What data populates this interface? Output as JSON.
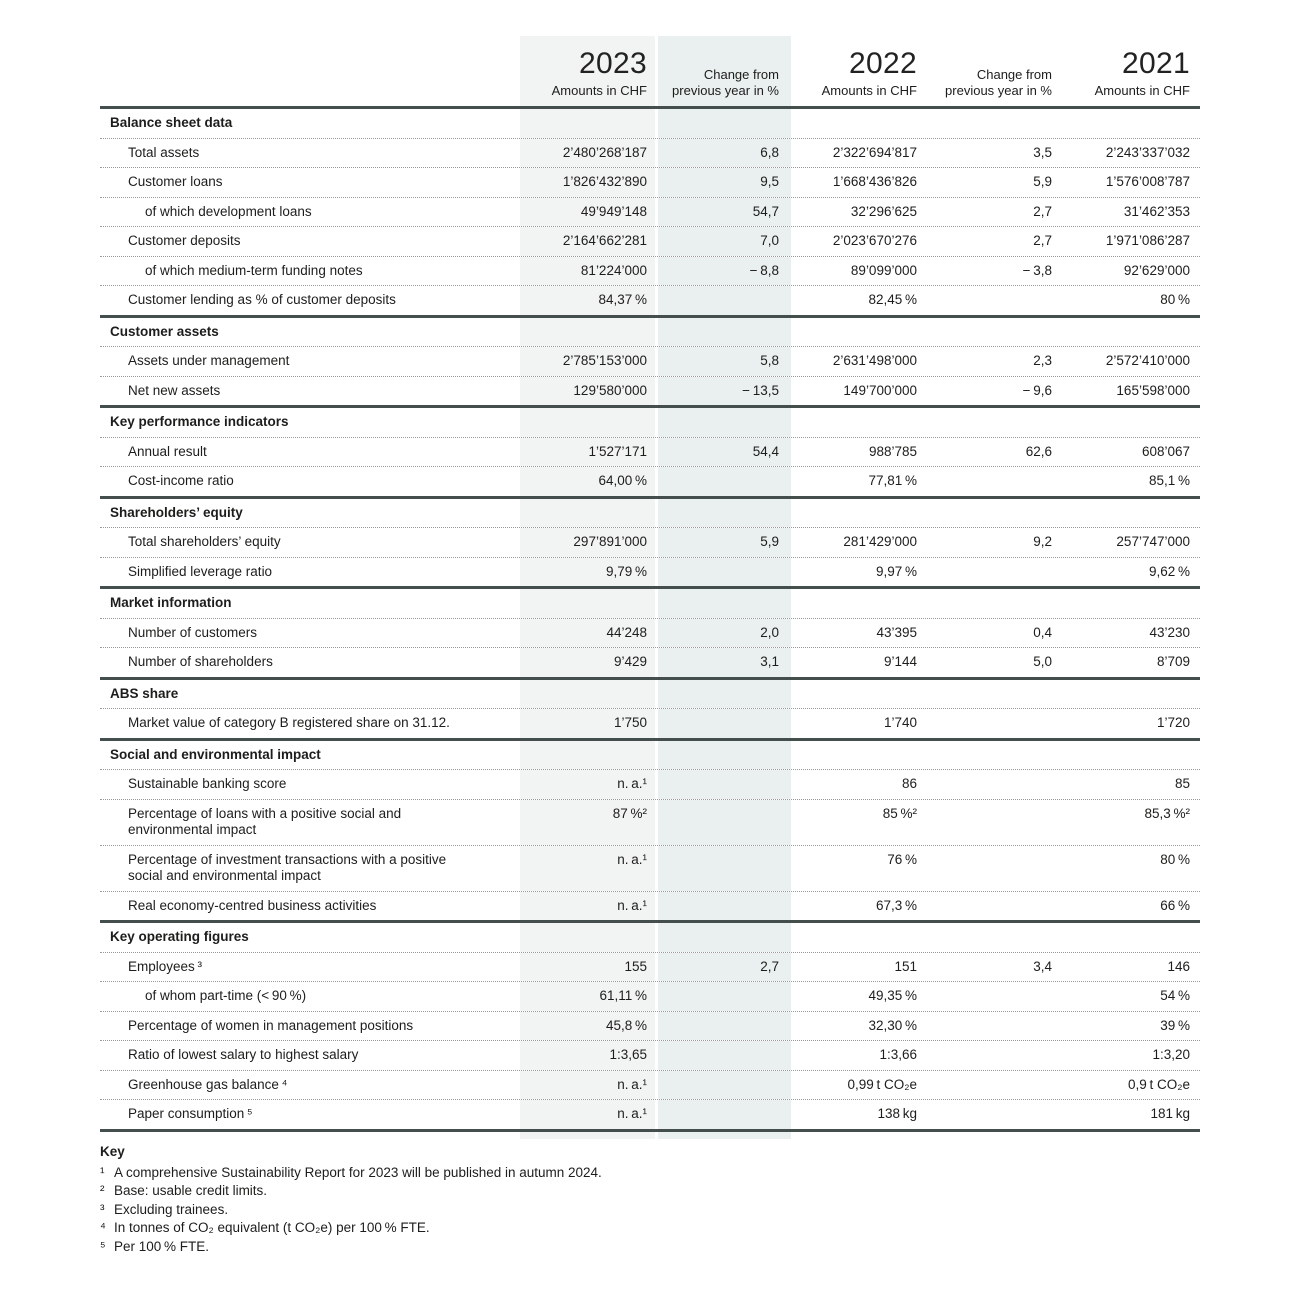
{
  "colors": {
    "shade_amounts_2023": "#f2f4f3",
    "shade_change_2023": "#eaf0ef",
    "rule_dark": "#434e4d",
    "dotted_rule": "#9b9b9b",
    "text": "#1d1d1b"
  },
  "table": {
    "header": {
      "col_2023": {
        "year": "2023",
        "sub": "Amounts in CHF"
      },
      "col_change_1": {
        "line1": "Change from",
        "line2": "previous year in %"
      },
      "col_2022": {
        "year": "2022",
        "sub": "Amounts in CHF"
      },
      "col_change_2": {
        "line1": "Change from",
        "line2": "previous year in %"
      },
      "col_2021": {
        "year": "2021",
        "sub": "Amounts in CHF"
      }
    },
    "sections": [
      {
        "title": "Balance sheet data",
        "rows": [
          {
            "label": "Total assets",
            "indent": 1,
            "v2023": "2’480’268’187",
            "chg1": "6,8",
            "v2022": "2’322’694’817",
            "chg2": "3,5",
            "v2021": "2’243’337’032"
          },
          {
            "label": "Customer loans",
            "indent": 1,
            "v2023": "1’826’432’890",
            "chg1": "9,5",
            "v2022": "1’668’436’826",
            "chg2": "5,9",
            "v2021": "1’576’008’787"
          },
          {
            "label": "of which development loans",
            "indent": 2,
            "v2023": "49’949’148",
            "chg1": "54,7",
            "v2022": "32’296’625",
            "chg2": "2,7",
            "v2021": "31’462’353"
          },
          {
            "label": "Customer deposits",
            "indent": 1,
            "v2023": "2’164’662’281",
            "chg1": "7,0",
            "v2022": "2’023’670’276",
            "chg2": "2,7",
            "v2021": "1’971’086’287"
          },
          {
            "label": "of which medium-term funding notes",
            "indent": 2,
            "v2023": "81’224’000",
            "chg1": "− 8,8",
            "v2022": "89’099’000",
            "chg2": "− 3,8",
            "v2021": "92’629’000"
          },
          {
            "label": "Customer lending as % of customer deposits",
            "indent": 1,
            "v2023": "84,37 %",
            "chg1": "",
            "v2022": "82,45 %",
            "chg2": "",
            "v2021": "80 %"
          }
        ]
      },
      {
        "title": "Customer assets",
        "rows": [
          {
            "label": "Assets under management",
            "indent": 1,
            "v2023": "2’785’153’000",
            "chg1": "5,8",
            "v2022": "2’631’498’000",
            "chg2": "2,3",
            "v2021": "2’572’410’000"
          },
          {
            "label": "Net new assets",
            "indent": 1,
            "v2023": "129’580’000",
            "chg1": "− 13,5",
            "v2022": "149’700’000",
            "chg2": "− 9,6",
            "v2021": "165’598’000"
          }
        ]
      },
      {
        "title": "Key performance indicators",
        "rows": [
          {
            "label": "Annual result",
            "indent": 1,
            "v2023": "1’527’171",
            "chg1": "54,4",
            "v2022": "988’785",
            "chg2": "62,6",
            "v2021": "608’067"
          },
          {
            "label": "Cost-income ratio",
            "indent": 1,
            "v2023": "64,00 %",
            "chg1": "",
            "v2022": "77,81 %",
            "chg2": "",
            "v2021": "85,1 %"
          }
        ]
      },
      {
        "title": "Shareholders’ equity",
        "rows": [
          {
            "label": "Total shareholders’ equity",
            "indent": 1,
            "v2023": "297’891’000",
            "chg1": "5,9",
            "v2022": "281’429’000",
            "chg2": "9,2",
            "v2021": "257’747’000"
          },
          {
            "label": "Simplified leverage ratio",
            "indent": 1,
            "v2023": "9,79 %",
            "chg1": "",
            "v2022": "9,97 %",
            "chg2": "",
            "v2021": "9,62 %"
          }
        ]
      },
      {
        "title": "Market information",
        "rows": [
          {
            "label": "Number of customers",
            "indent": 1,
            "v2023": "44’248",
            "chg1": "2,0",
            "v2022": "43’395",
            "chg2": "0,4",
            "v2021": "43’230"
          },
          {
            "label": "Number of shareholders",
            "indent": 1,
            "v2023": "9’429",
            "chg1": "3,1",
            "v2022": "9’144",
            "chg2": "5,0",
            "v2021": "8’709"
          }
        ]
      },
      {
        "title": "ABS share",
        "rows": [
          {
            "label": "Market value of category B registered share on 31.12.",
            "indent": 1,
            "v2023": "1’750",
            "chg1": "",
            "v2022": "1’740",
            "chg2": "",
            "v2021": "1’720"
          }
        ]
      },
      {
        "title": "Social and environmental impact",
        "rows": [
          {
            "label": "Sustainable banking score",
            "indent": 1,
            "v2023": "n. a.¹",
            "chg1": "",
            "v2022": "86",
            "chg2": "",
            "v2021": "85"
          },
          {
            "label": "Percentage of loans with a positive social and\nenvironmental impact",
            "indent": 1,
            "v2023": "87 %²",
            "chg1": "",
            "v2022": "85 %²",
            "chg2": "",
            "v2021": "85,3 %²"
          },
          {
            "label": "Percentage of investment transactions with a positive\nsocial and environmental impact",
            "indent": 1,
            "v2023": "n. a.¹",
            "chg1": "",
            "v2022": "76 %",
            "chg2": "",
            "v2021": "80 %"
          },
          {
            "label": "Real economy-centred business activities",
            "indent": 1,
            "v2023": "n. a.¹",
            "chg1": "",
            "v2022": "67,3 %",
            "chg2": "",
            "v2021": "66 %"
          }
        ]
      },
      {
        "title": "Key operating figures",
        "rows": [
          {
            "label": "Employees ³",
            "indent": 1,
            "v2023": "155",
            "chg1": "2,7",
            "v2022": "151",
            "chg2": "3,4",
            "v2021": "146"
          },
          {
            "label": "of whom part-time (< 90 %)",
            "indent": 2,
            "v2023": "61,11 %",
            "chg1": "",
            "v2022": "49,35 %",
            "chg2": "",
            "v2021": "54 %"
          },
          {
            "label": "Percentage of women in management positions",
            "indent": 1,
            "v2023": "45,8 %",
            "chg1": "",
            "v2022": "32,30 %",
            "chg2": "",
            "v2021": "39 %"
          },
          {
            "label": "Ratio of lowest salary to highest salary",
            "indent": 1,
            "v2023": "1:3,65",
            "chg1": "",
            "v2022": "1:3,66",
            "chg2": "",
            "v2021": "1:3,20"
          },
          {
            "label": "Greenhouse gas balance ⁴",
            "indent": 1,
            "v2023": "n. a.¹",
            "chg1": "",
            "v2022": "0,99 t CO₂e",
            "chg2": "",
            "v2021": "0,9 t CO₂e"
          },
          {
            "label": "Paper consumption ⁵",
            "indent": 1,
            "v2023": "n. a.¹",
            "chg1": "",
            "v2022": "138 kg",
            "chg2": "",
            "v2021": "181 kg"
          }
        ]
      }
    ]
  },
  "footnotes": {
    "title": "Key",
    "items": [
      {
        "marker": "¹",
        "text": "A comprehensive Sustainability Report for 2023 will be published in autumn 2024."
      },
      {
        "marker": "²",
        "text": "Base: usable credit limits."
      },
      {
        "marker": "³",
        "text": "Excluding trainees."
      },
      {
        "marker": "⁴",
        "text": "In tonnes of CO₂ equivalent (t CO₂e) per 100 % FTE."
      },
      {
        "marker": "⁵",
        "text": "Per 100 % FTE."
      }
    ]
  }
}
